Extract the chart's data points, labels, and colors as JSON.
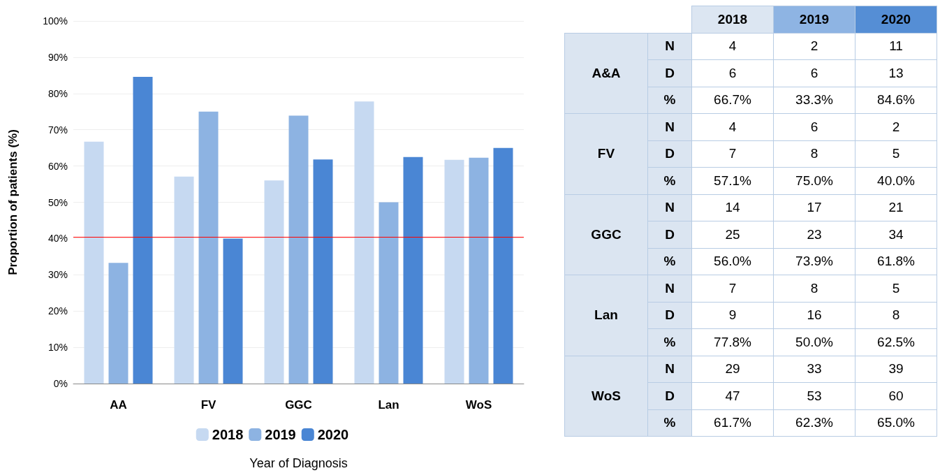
{
  "chart_data": [
    {
      "type": "bar",
      "xlabel": "Year of Diagnosis",
      "ylabel": "Proportion of patients (%)",
      "categories": [
        "AA",
        "FV",
        "GGC",
        "Lan",
        "WoS"
      ],
      "series": [
        {
          "name": "2018",
          "color": "#c6d9f1",
          "values": [
            66.7,
            57.1,
            56.0,
            77.8,
            61.7
          ]
        },
        {
          "name": "2019",
          "color": "#8db3e2",
          "values": [
            33.3,
            75.0,
            73.9,
            50.0,
            62.3
          ]
        },
        {
          "name": "2020",
          "color": "#4a86d4",
          "values": [
            84.6,
            40.0,
            61.8,
            62.5,
            65.0
          ]
        }
      ],
      "ylim": [
        0,
        100
      ],
      "yticks": [
        {
          "value": 0,
          "label": "0%"
        },
        {
          "value": 10,
          "label": "10%"
        },
        {
          "value": 20,
          "label": "20%"
        },
        {
          "value": 30,
          "label": "30%"
        },
        {
          "value": 40,
          "label": "40%"
        },
        {
          "value": 50,
          "label": "50%"
        },
        {
          "value": 60,
          "label": "60%"
        },
        {
          "value": 70,
          "label": "70%"
        },
        {
          "value": 80,
          "label": "80%"
        },
        {
          "value": 90,
          "label": "90%"
        },
        {
          "value": 100,
          "label": "100%"
        }
      ],
      "ref_lines": [
        {
          "axis": "y",
          "value": 40.4,
          "color": "#ff0000"
        }
      ],
      "grid": "y",
      "legend": "bottom"
    },
    {
      "type": "other",
      "categories": [
        "2018",
        "2019",
        "2020"
      ],
      "colors": [
        "#dce6f2",
        "#8eb4e3",
        "#558ed5"
      ],
      "y_categories": [
        "N",
        "D",
        "%",
        "N",
        "D",
        "%",
        "N",
        "D",
        "%",
        "N",
        "D",
        "%",
        "N",
        "D",
        "%"
      ],
      "y2_categories": [
        null,
        "A&A",
        null,
        null,
        "FV",
        null,
        null,
        "GGC",
        null,
        null,
        "Lan",
        null,
        null,
        "WoS",
        null
      ],
      "cell_labels": [
        [
          "4",
          "2",
          "11"
        ],
        [
          "6",
          "6",
          "13"
        ],
        [
          "66.7%",
          "33.3%",
          "84.6%"
        ],
        [
          "4",
          "6",
          "2"
        ],
        [
          "7",
          "8",
          "5"
        ],
        [
          "57.1%",
          "75.0%",
          "40.0%"
        ],
        [
          "14",
          "17",
          "21"
        ],
        [
          "25",
          "23",
          "34"
        ],
        [
          "56.0%",
          "73.9%",
          "61.8%"
        ],
        [
          "7",
          "8",
          "5"
        ],
        [
          "9",
          "16",
          "8"
        ],
        [
          "77.8%",
          "50.0%",
          "62.5%"
        ],
        [
          "29",
          "33",
          "39"
        ],
        [
          "47",
          "53",
          "60"
        ],
        [
          "61.7%",
          "62.3%",
          "65.0%"
        ]
      ]
    }
  ]
}
